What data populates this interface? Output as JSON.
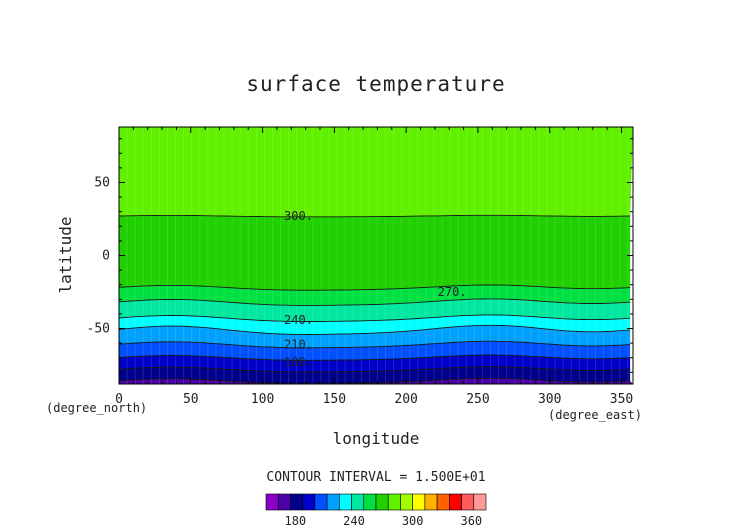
{
  "chart_data": {
    "type": "heatmap",
    "title": "surface temperature",
    "xlabel": "longitude",
    "ylabel": "latitude",
    "x_unit": "(degree_east)",
    "y_unit": "(degree_north)",
    "xlim": [
      0,
      358
    ],
    "ylim": [
      -88,
      88
    ],
    "x_ticks": [
      0,
      50,
      100,
      150,
      200,
      250,
      300,
      350
    ],
    "y_ticks": [
      -50,
      0,
      50
    ],
    "contour_interval_text": "CONTOUR INTERVAL = 1.500E+01",
    "contour_labels": [
      {
        "text": "300.",
        "lon": 125,
        "lat": 27
      },
      {
        "text": "270.",
        "lon": 232,
        "lat": -25
      },
      {
        "text": "240.",
        "lon": 125,
        "lat": -44
      },
      {
        "text": "210.",
        "lon": 125,
        "lat": -61
      },
      {
        "text": "180.",
        "lon": 125,
        "lat": -73
      }
    ],
    "colorbar": {
      "min": 150,
      "max": 375,
      "step": 15,
      "tick_labels": [
        180,
        240,
        300,
        360
      ],
      "colors": [
        "#8a00c8",
        "#4b00aa",
        "#00008c",
        "#0000c8",
        "#0050ff",
        "#00a0ff",
        "#00ffff",
        "#00e8a0",
        "#00e040",
        "#20d000",
        "#60f000",
        "#a0ff00",
        "#ffff00",
        "#ffb000",
        "#ff6000",
        "#ff0000",
        "#ff5a5a",
        "#ff9a9a"
      ]
    },
    "contour_levels": [
      180,
      195,
      210,
      225,
      240,
      255,
      270,
      285,
      300
    ],
    "contour_mean_lat": [
      -86,
      -78,
      -70,
      -61,
      -51,
      -43,
      -32,
      -22,
      27
    ],
    "contour_wave_amp": [
      2,
      2,
      2,
      2.5,
      3.5,
      2.5,
      2.5,
      2,
      0.6
    ]
  }
}
